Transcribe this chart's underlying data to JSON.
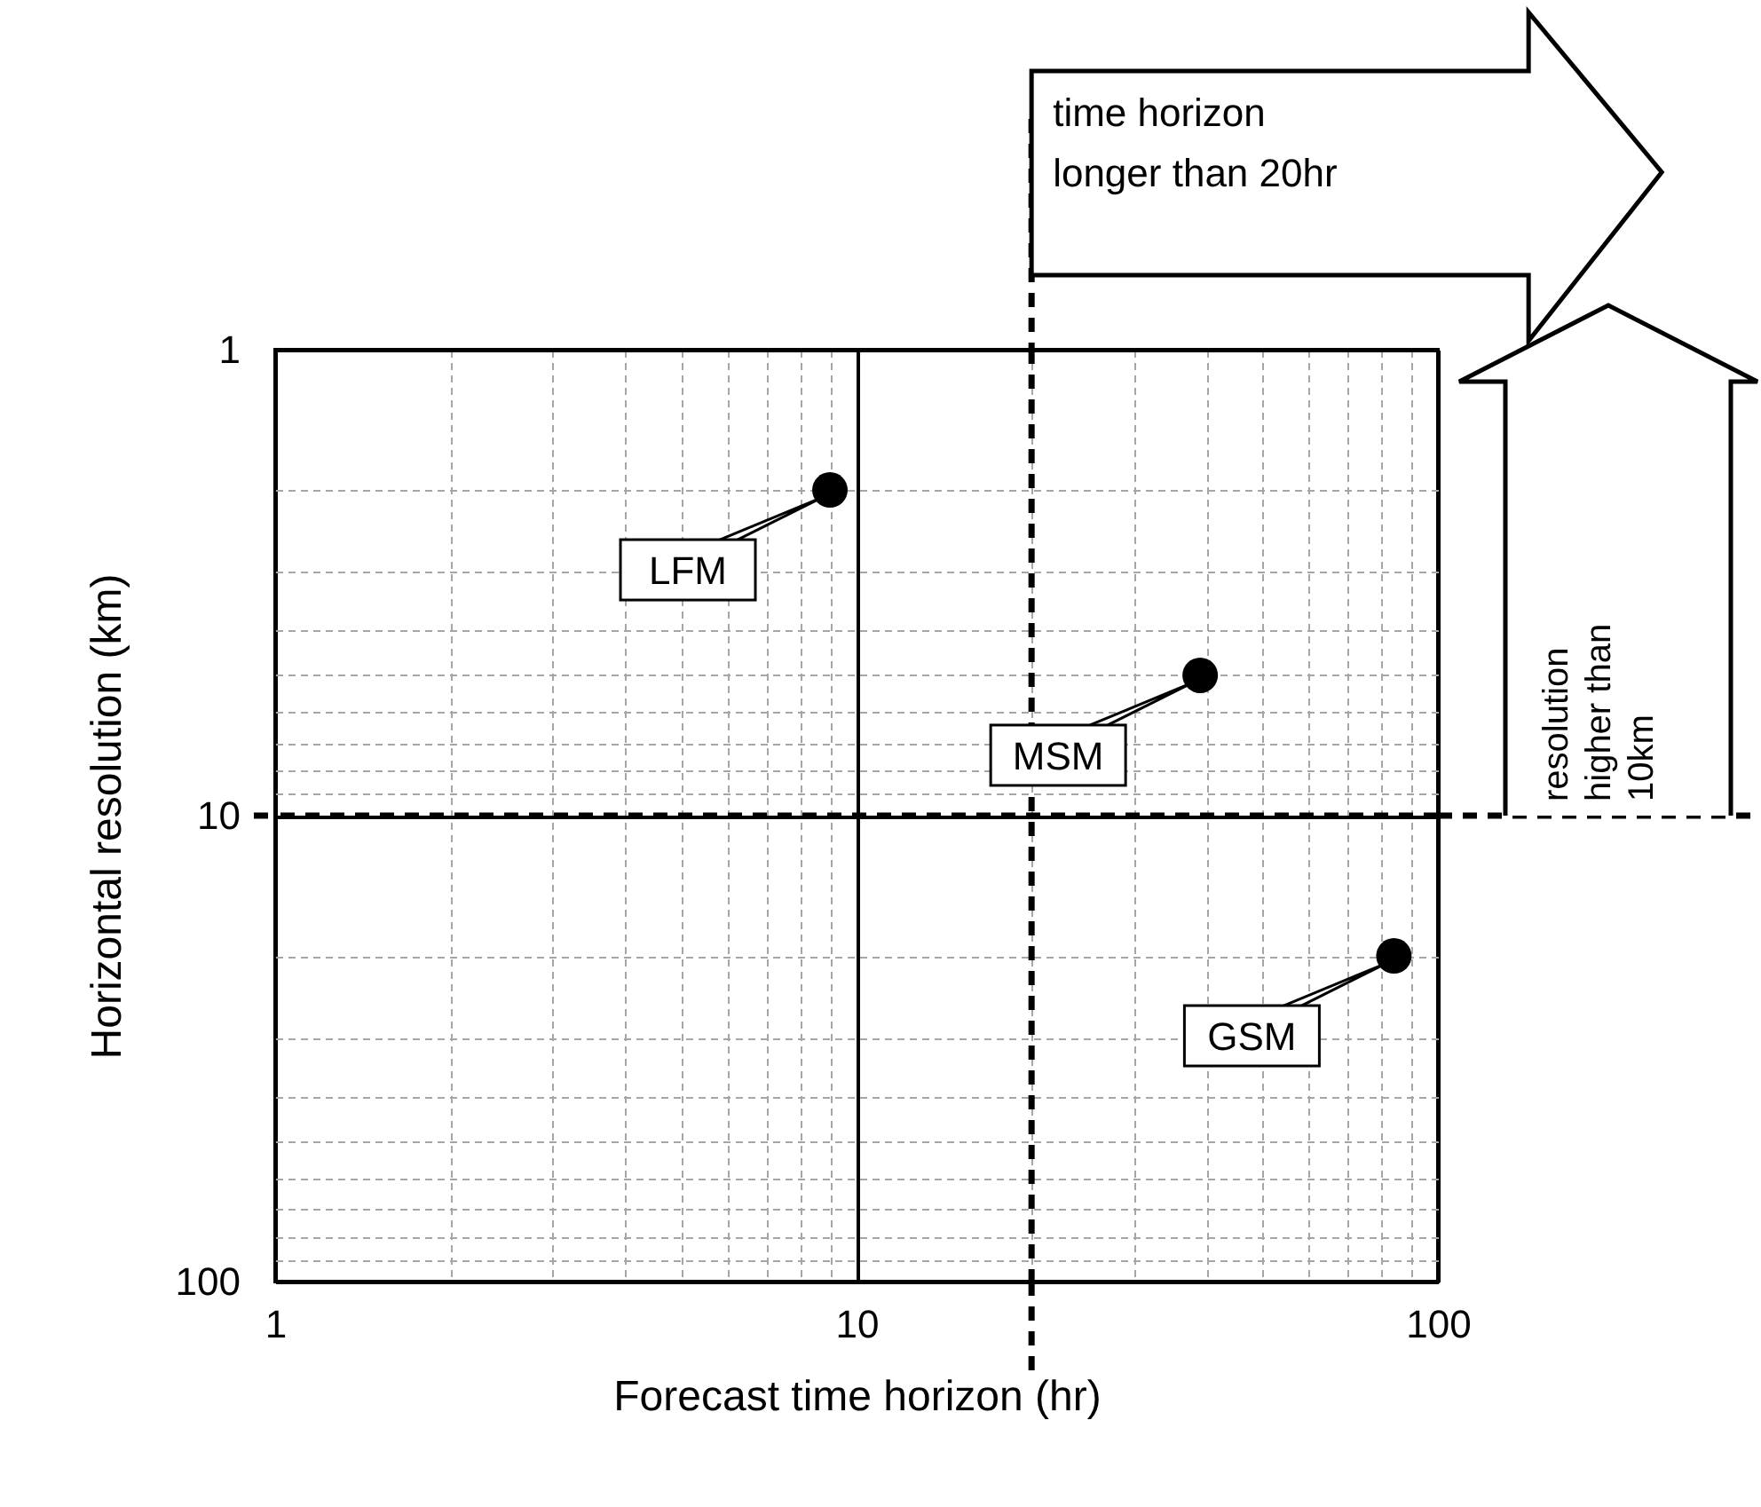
{
  "chart_data": {
    "type": "scatter",
    "xlabel": "Forecast time horizon (hr)",
    "ylabel": "Horizontal resolution (km)",
    "x": [
      9,
      39,
      84
    ],
    "values": [
      2,
      5,
      20
    ],
    "color": "#000000",
    "marker": "circle",
    "log": "xy",
    "xlim": [
      1,
      100
    ],
    "ylim": [
      100,
      1
    ],
    "xticks": [
      1,
      {
        "value": 2,
        "label": null
      },
      {
        "value": 3,
        "label": null
      },
      {
        "value": 4,
        "label": null
      },
      {
        "value": 5,
        "label": null
      },
      {
        "value": 6,
        "label": null
      },
      {
        "value": 7,
        "label": null
      },
      {
        "value": 8,
        "label": null
      },
      {
        "value": 9,
        "label": null
      },
      10,
      {
        "value": 20,
        "label": null
      },
      {
        "value": 30,
        "label": null
      },
      {
        "value": 40,
        "label": null
      },
      {
        "value": 50,
        "label": null
      },
      {
        "value": 60,
        "label": null
      },
      {
        "value": 70,
        "label": null
      },
      {
        "value": 80,
        "label": null
      },
      {
        "value": 90,
        "label": null
      },
      100
    ],
    "yticks": [
      1,
      {
        "value": 2,
        "label": null
      },
      {
        "value": 3,
        "label": null
      },
      {
        "value": 4,
        "label": null
      },
      {
        "value": 5,
        "label": null
      },
      {
        "value": 6,
        "label": null
      },
      {
        "value": 7,
        "label": null
      },
      {
        "value": 8,
        "label": null
      },
      {
        "value": 9,
        "label": null
      },
      10,
      {
        "value": 20,
        "label": null
      },
      {
        "value": 30,
        "label": null
      },
      {
        "value": 40,
        "label": null
      },
      {
        "value": 50,
        "label": null
      },
      {
        "value": 60,
        "label": null
      },
      {
        "value": 70,
        "label": null
      },
      {
        "value": 80,
        "label": null
      },
      {
        "value": 90,
        "label": null
      },
      100
    ],
    "grid": true,
    "ref_lines": [
      {
        "axis": "x",
        "value": 20,
        "label": "time horizon longer than 20hr",
        "color": "#000000",
        "line_style": "dashed"
      },
      {
        "axis": "y",
        "value": 10,
        "label": "resolution higher than 10km",
        "color": "#000000",
        "line_style": "dashed"
      }
    ],
    "annotations": [
      {
        "text": "LFM",
        "x": 9,
        "y": 2
      },
      {
        "text": "MSM",
        "x": 39,
        "y": 5
      },
      {
        "text": "GSM",
        "x": 84,
        "y": 20
      }
    ]
  }
}
